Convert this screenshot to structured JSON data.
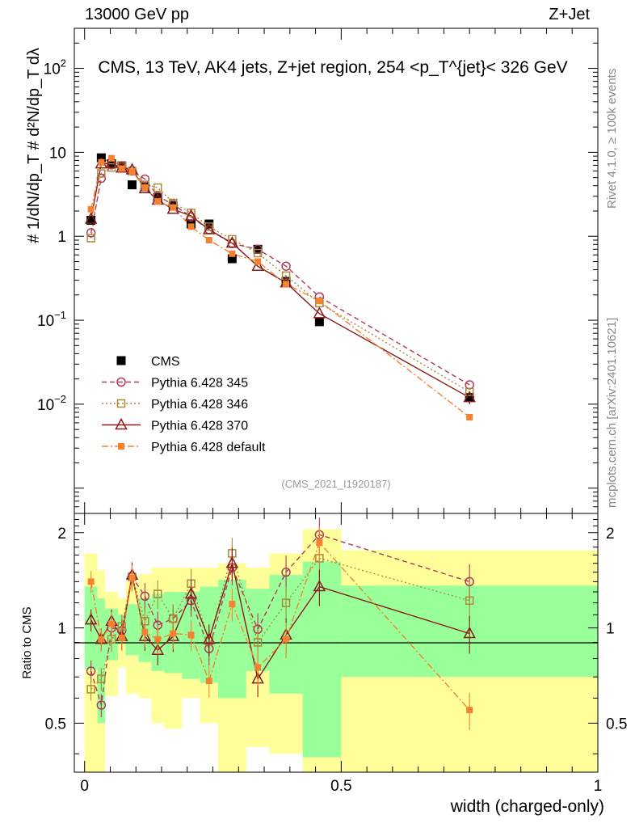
{
  "header": {
    "left": "13000 GeV pp",
    "right": "Z+Jet"
  },
  "side": {
    "rivet": "Rivet 4.1.0, ≥ 100k events",
    "mcplots": "mcplots.cern.ch [arXiv:2401.10621]"
  },
  "chart_data": {
    "type": "scatter",
    "title": "CMS, 13 TeV, AK4 jets, Z+jet region, 254 <p_T^{jet}< 326 GeV",
    "watermark": "(CMS_2021_I1920187)",
    "xlabel": "width (charged-only)",
    "ylabel": "# 1/dN/dp_T # d²N/dp_T dλ",
    "ratio_ylabel": "Ratio to CMS",
    "xlim": [
      -0.02,
      1.0
    ],
    "ylim": [
      0.0005,
      300
    ],
    "ratio_ylim": [
      0.35,
      2.3
    ],
    "x_ticks": [
      "0",
      "0.5",
      "1"
    ],
    "ratio_ticks": [
      "0.5",
      "1",
      "2"
    ],
    "x": [
      0.0125,
      0.0325,
      0.0525,
      0.0725,
      0.0925,
      0.1175,
      0.1425,
      0.1725,
      0.2075,
      0.2425,
      0.2875,
      0.3375,
      0.3925,
      0.4575,
      0.75
    ],
    "band_edges": [
      0.0,
      0.025,
      0.04,
      0.065,
      0.08,
      0.105,
      0.13,
      0.155,
      0.19,
      0.225,
      0.26,
      0.315,
      0.36,
      0.425,
      0.5,
      1.0
    ],
    "band_green_lo": [
      0.74,
      0.5,
      0.79,
      0.89,
      0.82,
      0.78,
      0.73,
      0.72,
      0.69,
      0.67,
      0.6,
      0.73,
      0.62,
      0.39,
      0.7
    ],
    "band_green_hi": [
      1.35,
      1.24,
      1.15,
      1.1,
      1.19,
      1.24,
      1.28,
      1.3,
      1.3,
      1.35,
      1.42,
      1.33,
      1.47,
      1.62,
      1.36
    ],
    "band_yellow_lo": [
      0.35,
      0.3,
      0.61,
      0.75,
      0.62,
      0.6,
      0.5,
      0.48,
      0.6,
      0.5,
      0.35,
      0.42,
      0.4,
      0.33,
      0.35
    ],
    "band_yellow_hi": [
      1.72,
      1.52,
      1.3,
      1.24,
      1.4,
      1.48,
      1.55,
      1.55,
      1.55,
      1.55,
      1.6,
      1.55,
      1.72,
      2.05,
      1.76
    ],
    "legend": [
      "CMS",
      "Pythia 6.428 345",
      "Pythia 6.428 346",
      "Pythia 6.428 370",
      "Pythia 6.428 default"
    ],
    "series": [
      {
        "name": "CMS",
        "color": "#000000",
        "values": [
          1.55,
          8.6,
          7.3,
          6.9,
          4.1,
          3.9,
          2.9,
          2.3,
          1.4,
          1.4,
          0.54,
          0.7,
          0.29,
          0.096,
          0.012
        ],
        "errors": [
          0.15,
          0.4,
          0.3,
          0.3,
          0.2,
          0.2,
          0.15,
          0.12,
          0.08,
          0.08,
          0.04,
          0.05,
          0.03,
          0.01,
          0.002
        ]
      },
      {
        "name": "Pythia 6.428 345",
        "color": "#b03a5a",
        "values": [
          1.1,
          4.9,
          7.1,
          6.7,
          6.0,
          4.8,
          3.0,
          2.4,
          1.7,
          1.2,
          0.82,
          0.7,
          0.44,
          0.19,
          0.017
        ],
        "ratio": [
          0.73,
          0.57,
          1.0,
          0.98,
          1.45,
          1.26,
          1.02,
          1.07,
          1.22,
          0.86,
          1.55,
          0.99,
          1.5,
          1.97,
          1.4
        ]
      },
      {
        "name": "Pythia 6.428 346",
        "color": "#a88a3a",
        "values": [
          0.95,
          5.6,
          6.6,
          7.0,
          6.0,
          4.1,
          3.8,
          2.5,
          1.9,
          1.3,
          0.92,
          0.63,
          0.34,
          0.16,
          0.014
        ],
        "ratio": [
          0.64,
          0.69,
          0.92,
          1.01,
          1.45,
          1.05,
          1.28,
          1.07,
          1.38,
          0.91,
          1.72,
          0.9,
          1.2,
          1.66,
          1.22
        ]
      },
      {
        "name": "Pythia 6.428 370",
        "color": "#8b1a1a",
        "values": [
          1.6,
          7.3,
          7.4,
          6.5,
          6.2,
          3.7,
          2.7,
          2.1,
          1.75,
          1.2,
          0.83,
          0.44,
          0.28,
          0.12,
          0.012
        ],
        "ratio": [
          1.06,
          0.92,
          1.05,
          0.94,
          1.47,
          0.94,
          0.85,
          0.94,
          1.28,
          0.92,
          1.6,
          0.69,
          0.95,
          1.35,
          0.96
        ]
      },
      {
        "name": "Pythia 6.428 default",
        "color": "#f58231",
        "values": [
          2.1,
          7.6,
          8.5,
          6.4,
          5.9,
          3.8,
          2.6,
          2.2,
          1.3,
          0.9,
          0.62,
          0.5,
          0.27,
          0.17,
          0.007
        ],
        "ratio": [
          1.4,
          0.92,
          1.03,
          0.93,
          1.44,
          0.97,
          0.92,
          0.96,
          0.95,
          0.68,
          1.19,
          0.75,
          0.92,
          1.86,
          0.55
        ]
      }
    ]
  }
}
